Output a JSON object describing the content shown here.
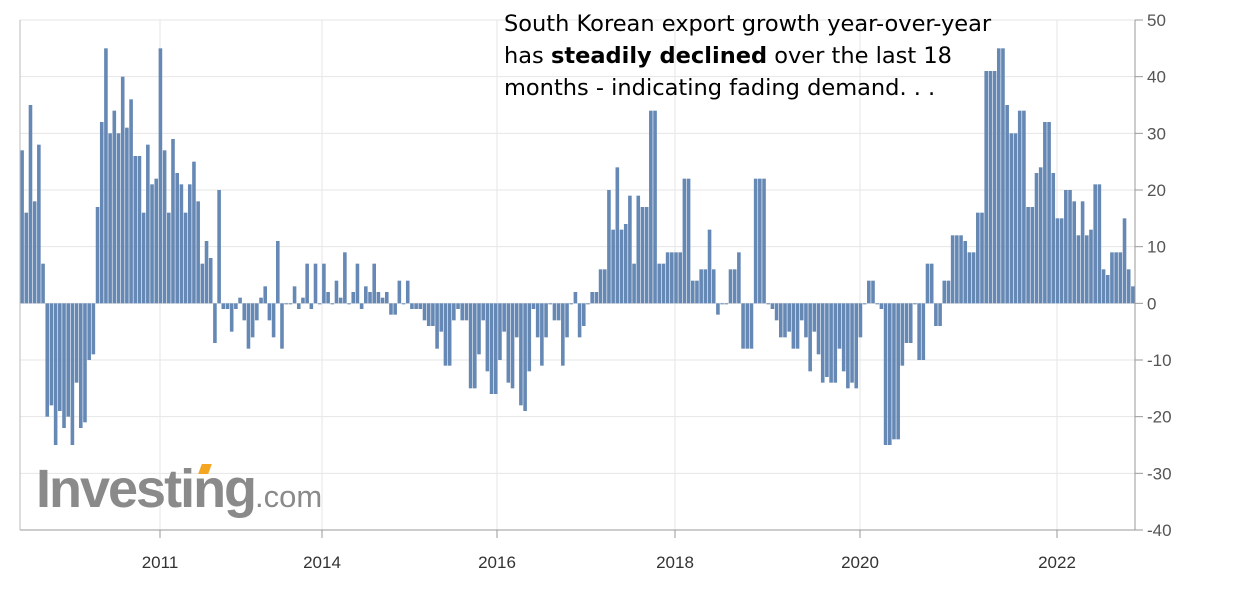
{
  "chart_data": {
    "type": "bar",
    "title": "",
    "xlabel": "",
    "ylabel": "",
    "ylim": [
      -40,
      50
    ],
    "y_ticks": [
      50,
      40,
      30,
      20,
      10,
      0,
      -10,
      -20,
      -30,
      -40
    ],
    "x_tick_labels": [
      "2011",
      "2014",
      "2016",
      "2018",
      "2020",
      "2022"
    ],
    "grid": true,
    "bar_color": "#6688b4",
    "values": [
      27,
      16,
      35,
      18,
      28,
      7,
      -20,
      -18,
      -25,
      -19,
      -22,
      -20,
      -25,
      -14,
      -22,
      -21,
      -10,
      -9,
      17,
      32,
      45,
      30,
      34,
      30,
      40,
      31,
      36,
      26,
      26,
      16,
      28,
      21,
      22,
      45,
      27,
      16,
      29,
      23,
      21,
      16,
      21,
      25,
      18,
      7,
      11,
      8,
      -7,
      20,
      -1,
      -1,
      -5,
      -1,
      1,
      -3,
      -8,
      -6,
      -3,
      1,
      3,
      -3,
      -6,
      11,
      -8,
      0,
      0,
      3,
      -1,
      1,
      7,
      -1,
      7,
      0,
      7,
      2,
      0,
      4,
      1,
      9,
      0,
      2,
      7,
      -1,
      3,
      2,
      7,
      2,
      1,
      2,
      -2,
      -2,
      4,
      0,
      4,
      -1,
      -1,
      -1,
      -3,
      -4,
      -4,
      -8,
      -5,
      -11,
      -11,
      -3,
      -1,
      -3,
      -3,
      -15,
      -15,
      -9,
      -3,
      -12,
      -16,
      -16,
      -10,
      -5,
      -14,
      -15,
      -6,
      -18,
      -19,
      -12,
      -1,
      -6,
      -11,
      -6,
      0,
      -3,
      -3,
      -11,
      -6,
      0,
      2,
      -6,
      -4,
      0,
      2,
      2,
      6,
      6,
      20,
      13,
      24,
      13,
      14,
      19,
      7,
      19,
      17,
      17,
      34,
      34,
      7,
      7,
      9,
      9,
      9,
      9,
      22,
      22,
      4,
      4,
      6,
      6,
      13,
      6,
      -2,
      0,
      0,
      6,
      6,
      9,
      -8,
      -8,
      -8,
      22,
      22,
      22,
      0,
      -1,
      -3,
      -6,
      -6,
      -5,
      -8,
      -8,
      -3,
      -6,
      -12,
      -5,
      -9,
      -14,
      -13,
      -14,
      -14,
      -8,
      -12,
      -15,
      -14,
      -15,
      -6,
      0,
      4,
      4,
      0,
      -1,
      -25,
      -25,
      -24,
      -24,
      -11,
      -7,
      -7,
      0,
      -10,
      -10,
      7,
      7,
      -4,
      -4,
      4,
      4,
      12,
      12,
      12,
      11,
      9,
      9,
      16,
      16,
      41,
      41,
      41,
      45,
      45,
      35,
      30,
      30,
      34,
      34,
      17,
      17,
      23,
      24,
      32,
      32,
      23,
      15,
      15,
      20,
      20,
      18,
      12,
      18,
      12,
      13,
      21,
      21,
      6,
      5,
      9,
      9,
      9,
      15,
      6,
      3
    ]
  },
  "annotation": {
    "line1": "South Korean export growth year-over-year",
    "line2_prefix": "has ",
    "line2_bold": "steadily declined",
    "line2_suffix": " over the last 18",
    "line3": "months - indicating fading demand. . ."
  },
  "logo": {
    "brand": "Investing",
    "suffix": ".com",
    "accent_color": "#f4a623"
  }
}
